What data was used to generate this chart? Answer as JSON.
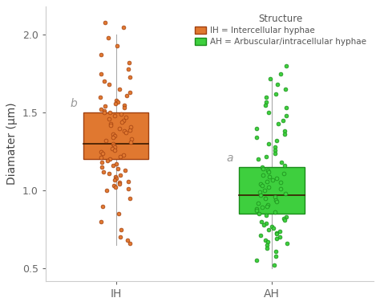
{
  "IH_stats": {
    "whisker_low": 0.65,
    "q1": 1.2,
    "median": 1.3,
    "q3": 1.5,
    "whisker_high": 2.0,
    "label": "b",
    "color_face": "#E07830",
    "color_edge": "#A04010"
  },
  "AH_stats": {
    "whisker_low": 0.5,
    "q1": 0.85,
    "median": 0.97,
    "q3": 1.15,
    "whisker_high": 1.72,
    "label": "a",
    "color_face": "#3ECF3E",
    "color_edge": "#1A8C1A"
  },
  "IH_points": [
    2.08,
    2.05,
    1.98,
    1.93,
    1.87,
    1.82,
    1.78,
    1.75,
    1.73,
    1.7,
    1.68,
    1.65,
    1.63,
    1.61,
    1.6,
    1.58,
    1.57,
    1.56,
    1.55,
    1.54,
    1.53,
    1.52,
    1.51,
    1.5,
    1.5,
    1.49,
    1.48,
    1.47,
    1.46,
    1.45,
    1.44,
    1.43,
    1.42,
    1.41,
    1.4,
    1.39,
    1.38,
    1.37,
    1.36,
    1.35,
    1.34,
    1.33,
    1.32,
    1.31,
    1.3,
    1.29,
    1.28,
    1.27,
    1.26,
    1.25,
    1.24,
    1.23,
    1.22,
    1.21,
    1.2,
    1.19,
    1.18,
    1.17,
    1.16,
    1.15,
    1.14,
    1.13,
    1.12,
    1.11,
    1.1,
    1.09,
    1.08,
    1.07,
    1.06,
    1.05,
    1.04,
    1.03,
    1.02,
    1.01,
    1.0,
    0.95,
    0.9,
    0.85,
    0.8,
    0.75,
    0.7,
    0.68,
    0.66
  ],
  "AH_points": [
    1.72,
    1.68,
    1.65,
    1.62,
    1.6,
    1.57,
    1.55,
    1.53,
    1.5,
    1.48,
    1.45,
    1.43,
    1.4,
    1.38,
    1.36,
    1.34,
    1.32,
    1.3,
    1.28,
    1.26,
    1.24,
    1.22,
    1.2,
    1.18,
    1.16,
    1.15,
    1.14,
    1.13,
    1.12,
    1.11,
    1.1,
    1.09,
    1.08,
    1.07,
    1.06,
    1.05,
    1.04,
    1.03,
    1.02,
    1.01,
    1.0,
    0.99,
    0.98,
    0.97,
    0.96,
    0.95,
    0.94,
    0.93,
    0.92,
    0.91,
    0.9,
    0.89,
    0.88,
    0.87,
    0.86,
    0.85,
    0.84,
    0.83,
    0.82,
    0.81,
    0.8,
    0.79,
    0.78,
    0.77,
    0.76,
    0.75,
    0.74,
    0.73,
    0.72,
    0.71,
    0.7,
    0.69,
    0.68,
    0.67,
    0.66,
    0.65,
    0.63,
    0.61,
    0.58,
    0.55,
    0.52,
    1.75,
    1.8
  ],
  "ylabel": "Diamater (μm)",
  "xtick_labels": [
    "IH",
    "AH"
  ],
  "ylim": [
    0.42,
    2.18
  ],
  "yticks": [
    0.5,
    1.0,
    1.5,
    2.0
  ],
  "bg_color": "#FFFFFF",
  "panel_bg": "#FFFFFF",
  "legend_title": "Structure",
  "legend_items": [
    {
      "label": "IH = Intercellular hyphae",
      "color_face": "#E07830",
      "color_edge": "#A04010"
    },
    {
      "label": "AH = Arbuscular/intracellular hyphae",
      "color_face": "#3ECF3E",
      "color_edge": "#1A8C1A"
    }
  ]
}
